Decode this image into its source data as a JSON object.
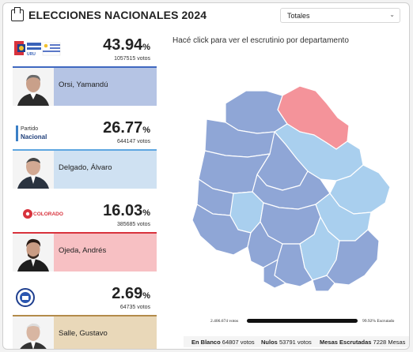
{
  "header": {
    "title": "ELECCIONES NACIONALES 2024",
    "filter_value": "Totales"
  },
  "candidates": [
    {
      "pct": "43.94",
      "votes": "1057515 votos",
      "name": "Orsi, Yamandú",
      "party_logo": "frente-amplio-flag",
      "color": "#b5c4e4",
      "line": "#3f68c0"
    },
    {
      "pct": "26.77",
      "votes": "644147 votos",
      "name": "Delgado, Álvaro",
      "party_logo": "partido-nacional",
      "party_label_1": "Partido",
      "party_label_2": "Nacional",
      "color": "#cfe1f2",
      "line": "#5ea6e0"
    },
    {
      "pct": "16.03",
      "votes": "385685 votos",
      "name": "Ojeda, Andrés",
      "party_logo": "partido-colorado",
      "party_label_2": "COLORADO",
      "color": "#f7c0c3",
      "line": "#d8323c"
    },
    {
      "pct": "2.69",
      "votes": "64735 votos",
      "name": "Salle, Gustavo",
      "party_logo": "identidad-soberana-seal",
      "color": "#e9d8b9",
      "line": "#b38b4a"
    }
  ],
  "map": {
    "instruction": "Hacé click para ver el escrutinio por departamento",
    "colors": {
      "fa": "#8fa6d6",
      "pn": "#a9cfee",
      "pc": "#f4939a"
    }
  },
  "progress": {
    "votes": "2.406.674 votos",
    "pct": "99.92% Escrutado"
  },
  "footer": {
    "blanco_label": "En Blanco",
    "blanco_value": "64807 votos",
    "nulos_label": "Nulos",
    "nulos_value": "53791 votos",
    "mesas_label": "Mesas Escrutadas",
    "mesas_value": "7228 Mesas"
  }
}
